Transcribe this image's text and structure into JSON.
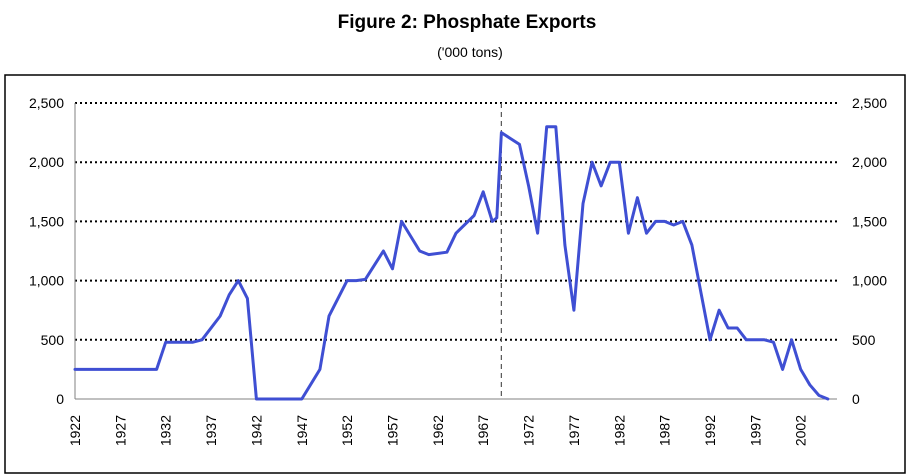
{
  "chart_data": {
    "type": "line",
    "title": "Figure 2:  Phosphate Exports",
    "subtitle": "('000 tons)",
    "xlabel": "",
    "ylabel": "",
    "xlim": [
      1922,
      2006
    ],
    "ylim": [
      0,
      2500
    ],
    "y_ticks": [
      0,
      500,
      1000,
      1500,
      2000,
      2500
    ],
    "y_tick_labels": [
      "0",
      "500",
      "1,000",
      "1,500",
      "2,000",
      "2,500"
    ],
    "x_tick_labels": [
      "1922",
      "1927",
      "1932",
      "1937",
      "1942",
      "1947",
      "1952",
      "1957",
      "1962",
      "1967",
      "1972",
      "1977",
      "1982",
      "1987",
      "1992",
      "1997",
      "2002"
    ],
    "grid": "horizontal dotted",
    "reference_line": {
      "x": 1969,
      "style": "dashed"
    },
    "color": "#3f4fd3",
    "x": [
      1922,
      1931,
      1932,
      1933,
      1935,
      1936,
      1938,
      1939,
      1940,
      1941,
      1942,
      1946,
      1947,
      1949,
      1950,
      1952,
      1953,
      1954,
      1956,
      1957,
      1958,
      1960,
      1961,
      1963,
      1964,
      1966,
      1967,
      1968,
      1968.5,
      1969,
      1970,
      1971,
      1972,
      1973,
      1974,
      1975,
      1976,
      1977,
      1978,
      1979,
      1980,
      1981,
      1982,
      1983,
      1984,
      1985,
      1986,
      1987,
      1988,
      1989,
      1990,
      1991,
      1992,
      1993,
      1994,
      1995,
      1996,
      1997,
      1998,
      1999,
      2000,
      2001,
      2002,
      2003,
      2004,
      2005
    ],
    "y": [
      250,
      250,
      480,
      480,
      480,
      500,
      700,
      880,
      1000,
      850,
      0,
      0,
      0,
      250,
      700,
      1000,
      1000,
      1010,
      1250,
      1100,
      1500,
      1250,
      1220,
      1240,
      1400,
      1550,
      1750,
      1500,
      1530,
      2250,
      2200,
      2150,
      1800,
      1400,
      2300,
      2300,
      1300,
      750,
      1650,
      2000,
      1800,
      2000,
      2000,
      1400,
      1700,
      1400,
      1500,
      1500,
      1470,
      1500,
      1300,
      900,
      500,
      750,
      600,
      600,
      500,
      500,
      500,
      480,
      250,
      500,
      250,
      120,
      30,
      0
    ]
  }
}
